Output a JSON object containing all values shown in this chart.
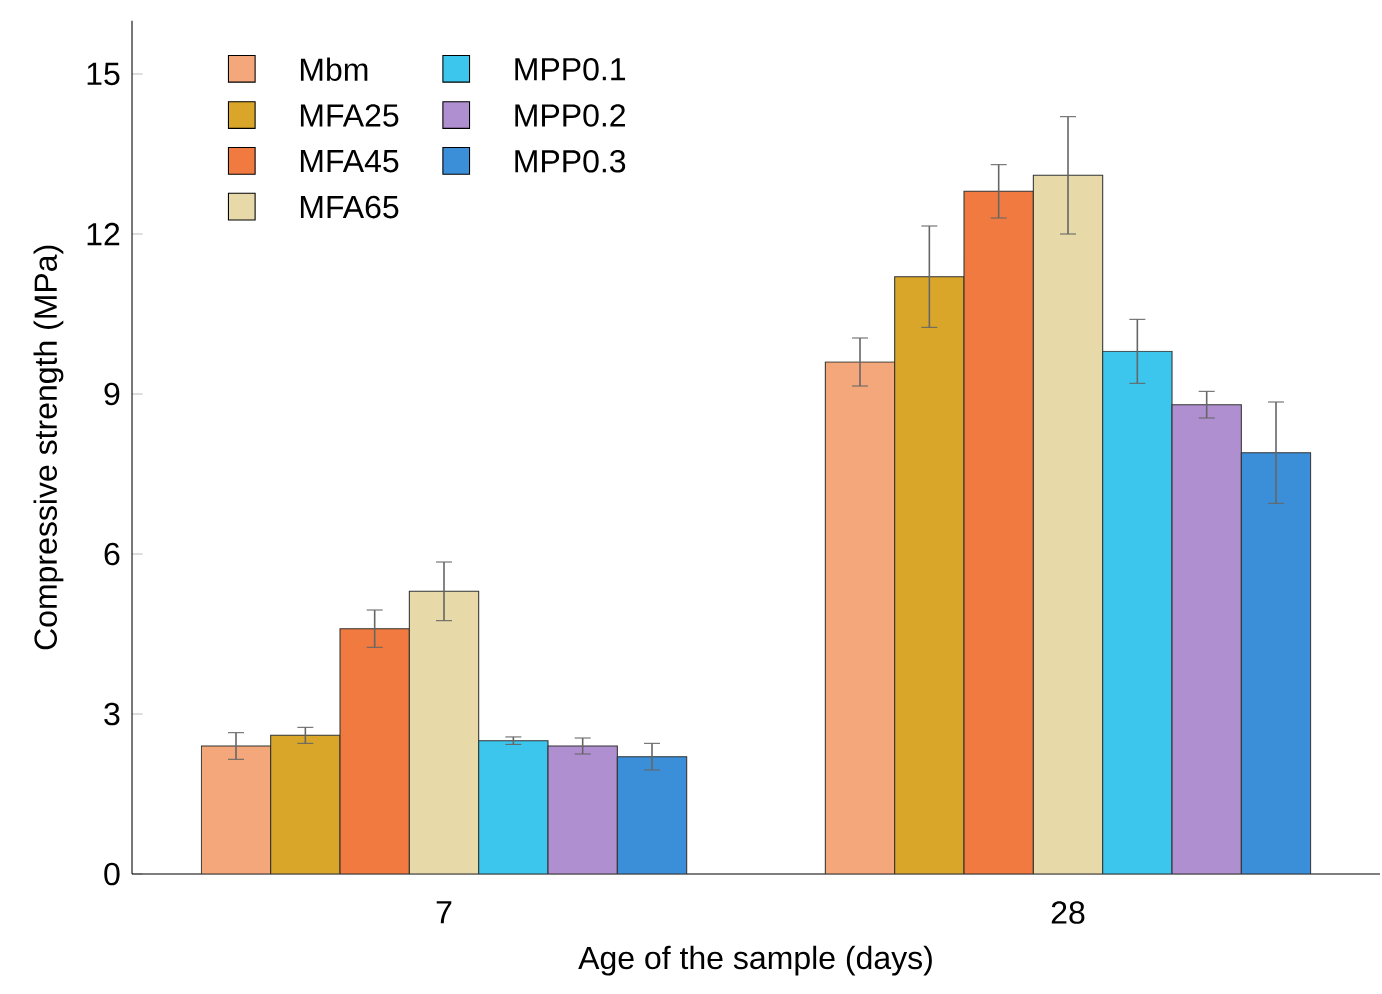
{
  "chart_data": {
    "type": "bar",
    "xlabel": "Age of the sample (days)",
    "ylabel": "Compressive strength (MPa)",
    "categories": [
      "7",
      "28"
    ],
    "ylim": [
      0,
      16
    ],
    "yticks": [
      0,
      3,
      6,
      9,
      12,
      15
    ],
    "legend": "top left",
    "grid": false,
    "series": [
      {
        "name": "Mbm",
        "color": "#f4a77a",
        "values": [
          2.4,
          9.6
        ],
        "errors": [
          0.25,
          0.45
        ]
      },
      {
        "name": "MFA25",
        "color": "#d9a62a",
        "values": [
          2.6,
          11.2
        ],
        "errors": [
          0.15,
          0.95
        ]
      },
      {
        "name": "MFA45",
        "color": "#f07a40",
        "values": [
          4.6,
          12.8
        ],
        "errors": [
          0.35,
          0.5
        ]
      },
      {
        "name": "MFA65",
        "color": "#e8d9a8",
        "values": [
          5.3,
          13.1
        ],
        "errors": [
          0.55,
          1.1
        ]
      },
      {
        "name": "MPP0.1",
        "color": "#3cc6ee",
        "values": [
          2.5,
          9.8
        ],
        "errors": [
          0.07,
          0.6
        ]
      },
      {
        "name": "MPP0.2",
        "color": "#b08fd0",
        "values": [
          2.4,
          8.8
        ],
        "errors": [
          0.15,
          0.25
        ]
      },
      {
        "name": "MPP0.3",
        "color": "#3a8fd8",
        "values": [
          2.2,
          7.9
        ],
        "errors": [
          0.25,
          0.95
        ]
      }
    ]
  }
}
